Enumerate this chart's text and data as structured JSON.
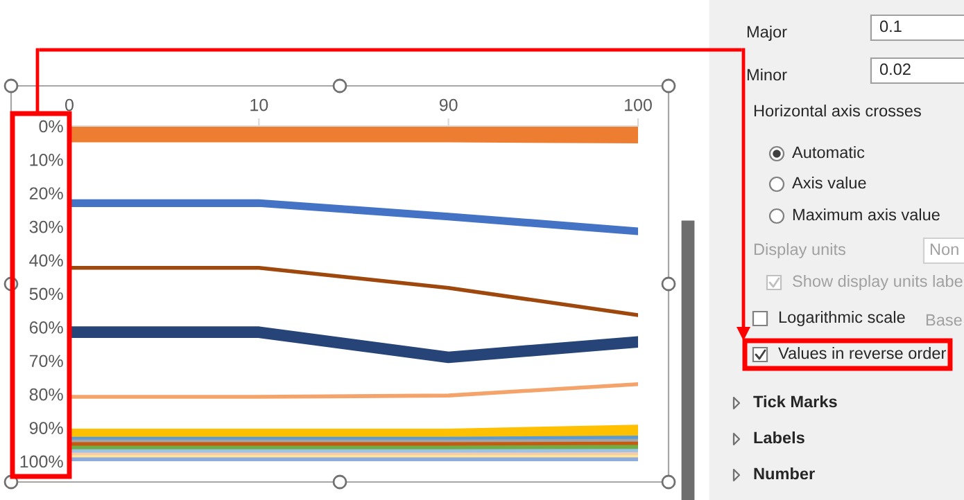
{
  "chart_data": [
    {
      "type": "line",
      "categories": [
        "0",
        "10",
        "90",
        "100"
      ],
      "ylim": [
        100,
        0
      ],
      "yticks": [
        {
          "value": 0,
          "label": "0%"
        },
        {
          "value": 10,
          "label": "10%"
        },
        {
          "value": 20,
          "label": "20%"
        },
        {
          "value": 30,
          "label": "30%"
        },
        {
          "value": 40,
          "label": "40%"
        },
        {
          "value": 50,
          "label": "50%"
        },
        {
          "value": 60,
          "label": "60%"
        },
        {
          "value": 70,
          "label": "70%"
        },
        {
          "value": 80,
          "label": "80%"
        },
        {
          "value": 90,
          "label": "90%"
        },
        {
          "value": 100,
          "label": "100%"
        }
      ],
      "grid": false,
      "series": [
        {
          "color": "#ed7d31",
          "values": [
            2,
            2,
            2,
            2.3
          ]
        },
        {
          "color": "#4472c4",
          "values": [
            23,
            23,
            27,
            31.4
          ]
        },
        {
          "color": "#9e480e",
          "values": [
            42.3,
            42.3,
            48.3,
            56.4
          ]
        },
        {
          "color": "#264478",
          "values": [
            61.5,
            61.5,
            69,
            64.4
          ]
        },
        {
          "color": "#f4a46a",
          "values": [
            80.8,
            80.8,
            80.4,
            77
          ]
        },
        {
          "color": "#ffc000",
          "values": [
            92,
            92,
            92,
            90.8
          ]
        },
        {
          "color": "#5b9bd5",
          "values": [
            93.6,
            93.6,
            93.6,
            93.2
          ]
        },
        {
          "color": "#a5a5a5",
          "values": [
            94.4,
            94.4,
            94.4,
            94.2
          ]
        },
        {
          "color": "#c55a11",
          "values": [
            95.2,
            95.2,
            95.2,
            95
          ]
        },
        {
          "color": "#70ad47",
          "values": [
            96.2,
            96.2,
            96.2,
            96
          ]
        },
        {
          "color": "#9dc3e6",
          "values": [
            97.3,
            97.3,
            97.3,
            97.2
          ]
        },
        {
          "color": "#f8cbad",
          "values": [
            98.3,
            98.3,
            98.3,
            98.2
          ]
        },
        {
          "color": "#ffe699",
          "values": [
            99,
            99,
            99,
            99
          ]
        },
        {
          "color": "#8faadc",
          "values": [
            99.7,
            99.7,
            99.7,
            99.7
          ]
        }
      ]
    },
    {
      "type": "other",
      "annotations": [
        "Major",
        "0.1",
        "Minor",
        "0.02",
        "Horizontal axis crosses",
        "Automatic",
        "Axis value",
        "Maximum axis value",
        "Display units",
        "Non",
        "Show display units labe",
        "Logarithmic scale",
        "Base",
        "Values in reverse order",
        "Tick Marks",
        "Labels",
        "Number"
      ]
    }
  ]
}
